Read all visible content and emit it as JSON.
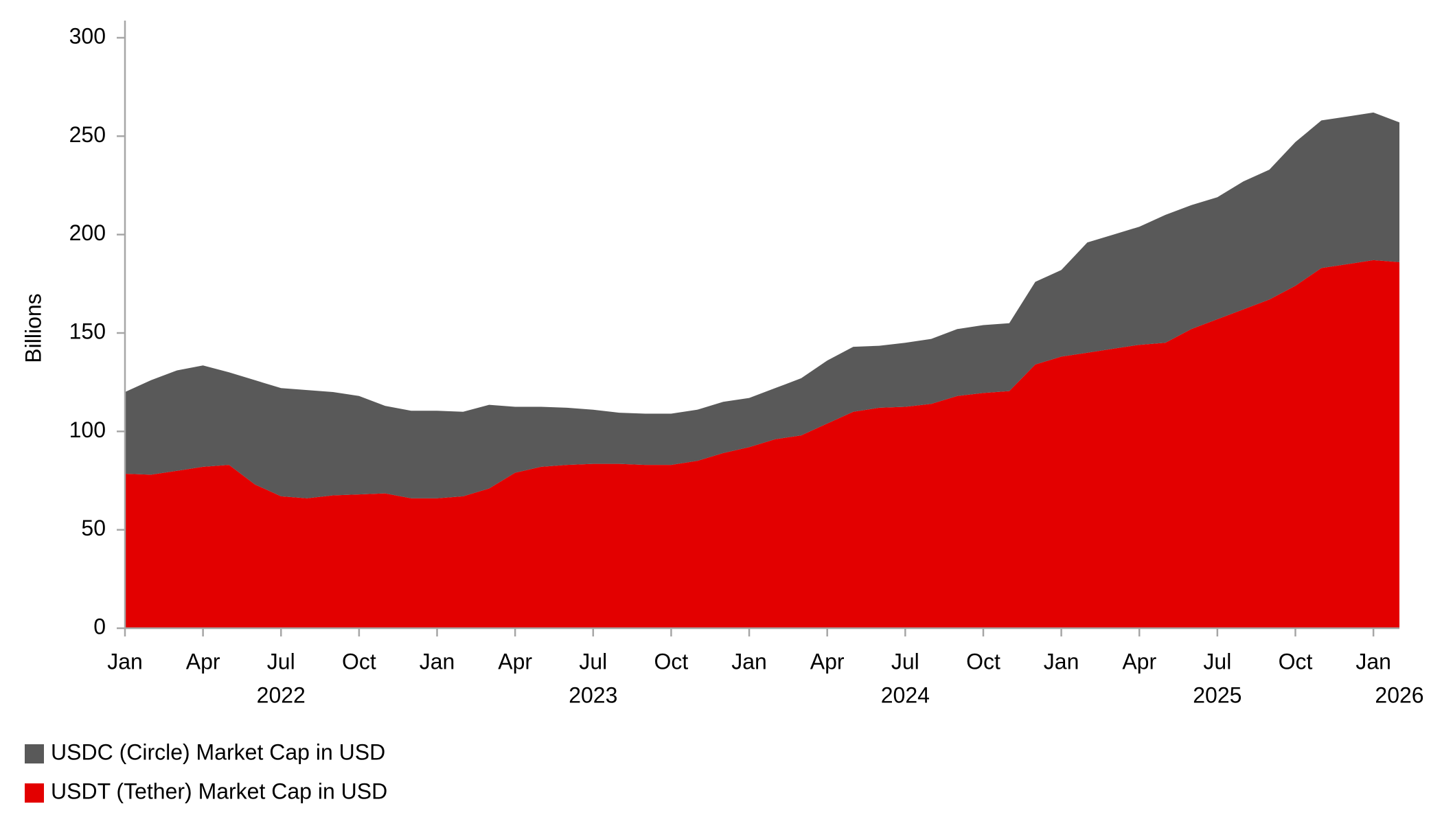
{
  "chart_data": {
    "type": "stacked_area",
    "y_label": "Billions",
    "x": [
      "2022-01",
      "2022-02",
      "2022-03",
      "2022-04",
      "2022-05",
      "2022-06",
      "2022-07",
      "2022-08",
      "2022-09",
      "2022-10",
      "2022-11",
      "2022-12",
      "2023-01",
      "2023-02",
      "2023-03",
      "2023-04",
      "2023-05",
      "2023-06",
      "2023-07",
      "2023-08",
      "2023-09",
      "2023-10",
      "2023-11",
      "2023-12",
      "2024-01",
      "2024-02",
      "2024-03",
      "2024-04",
      "2024-05",
      "2024-06",
      "2024-07",
      "2024-08",
      "2024-09",
      "2024-10",
      "2024-11",
      "2024-12",
      "2025-01",
      "2025-02",
      "2025-03",
      "2025-04",
      "2025-05",
      "2025-06",
      "2025-07",
      "2025-08",
      "2025-09",
      "2025-10",
      "2025-11",
      "2025-12",
      "2026-01",
      "2026-02"
    ],
    "series": [
      {
        "name": "USDT (Tether) Market Cap in USD",
        "color": "#e30000",
        "values": [
          78.5,
          78,
          80,
          82,
          83,
          73,
          67,
          66,
          67.5,
          68,
          68.5,
          66,
          66,
          67,
          71,
          79,
          82,
          83,
          83.5,
          83.5,
          83,
          83,
          85,
          89,
          92,
          96,
          98,
          104,
          110,
          112,
          112.5,
          114,
          118,
          119.5,
          120.5,
          134,
          138,
          140,
          142,
          144,
          145,
          152,
          157,
          162,
          167,
          174,
          183,
          185,
          187,
          186
        ]
      },
      {
        "name": "USDC (Circle) Market Cap in USD",
        "color": "#595959",
        "values": [
          41.5,
          48,
          51,
          51.5,
          47,
          53,
          55,
          55,
          52.5,
          50,
          44.5,
          44.5,
          44.5,
          43,
          42.5,
          33.5,
          30.5,
          29,
          27.5,
          26,
          26,
          26,
          26,
          26,
          25,
          26,
          29,
          32,
          33,
          31.5,
          32.5,
          33,
          34,
          34.5,
          34.5,
          42,
          44,
          56,
          58,
          60,
          65,
          63,
          62,
          65,
          66,
          73,
          75,
          75,
          75,
          71
        ]
      }
    ],
    "xlim": [
      "2022-01",
      "2026-02"
    ],
    "xticks": [
      {
        "value": "2022-01",
        "label": "Jan"
      },
      {
        "value": "2022-04",
        "label": "Apr"
      },
      {
        "value": "2022-07",
        "label": "Jul"
      },
      {
        "value": "2022-10",
        "label": "Oct"
      },
      {
        "value": "2023-01",
        "label": "Jan"
      },
      {
        "value": "2023-04",
        "label": "Apr"
      },
      {
        "value": "2023-07",
        "label": "Jul"
      },
      {
        "value": "2023-10",
        "label": "Oct"
      },
      {
        "value": "2024-01",
        "label": "Jan"
      },
      {
        "value": "2024-04",
        "label": "Apr"
      },
      {
        "value": "2024-07",
        "label": "Jul"
      },
      {
        "value": "2024-10",
        "label": "Oct"
      },
      {
        "value": "2025-01",
        "label": "Jan"
      },
      {
        "value": "2025-04",
        "label": "Apr"
      },
      {
        "value": "2025-07",
        "label": "Jul"
      },
      {
        "value": "2025-10",
        "label": "Oct"
      },
      {
        "value": "2026-01",
        "label": "Jan"
      }
    ],
    "year_labels": [
      {
        "value": "2022-07",
        "label": "2022"
      },
      {
        "value": "2023-07",
        "label": "2023"
      },
      {
        "value": "2024-07",
        "label": "2024"
      },
      {
        "value": "2025-07",
        "label": "2025"
      },
      {
        "value": "2026-02",
        "label": "2026"
      }
    ],
    "ylim": [
      0,
      300
    ],
    "yticks": [
      0,
      50,
      100,
      150,
      200,
      250,
      300
    ],
    "legend": "bottom-left"
  }
}
